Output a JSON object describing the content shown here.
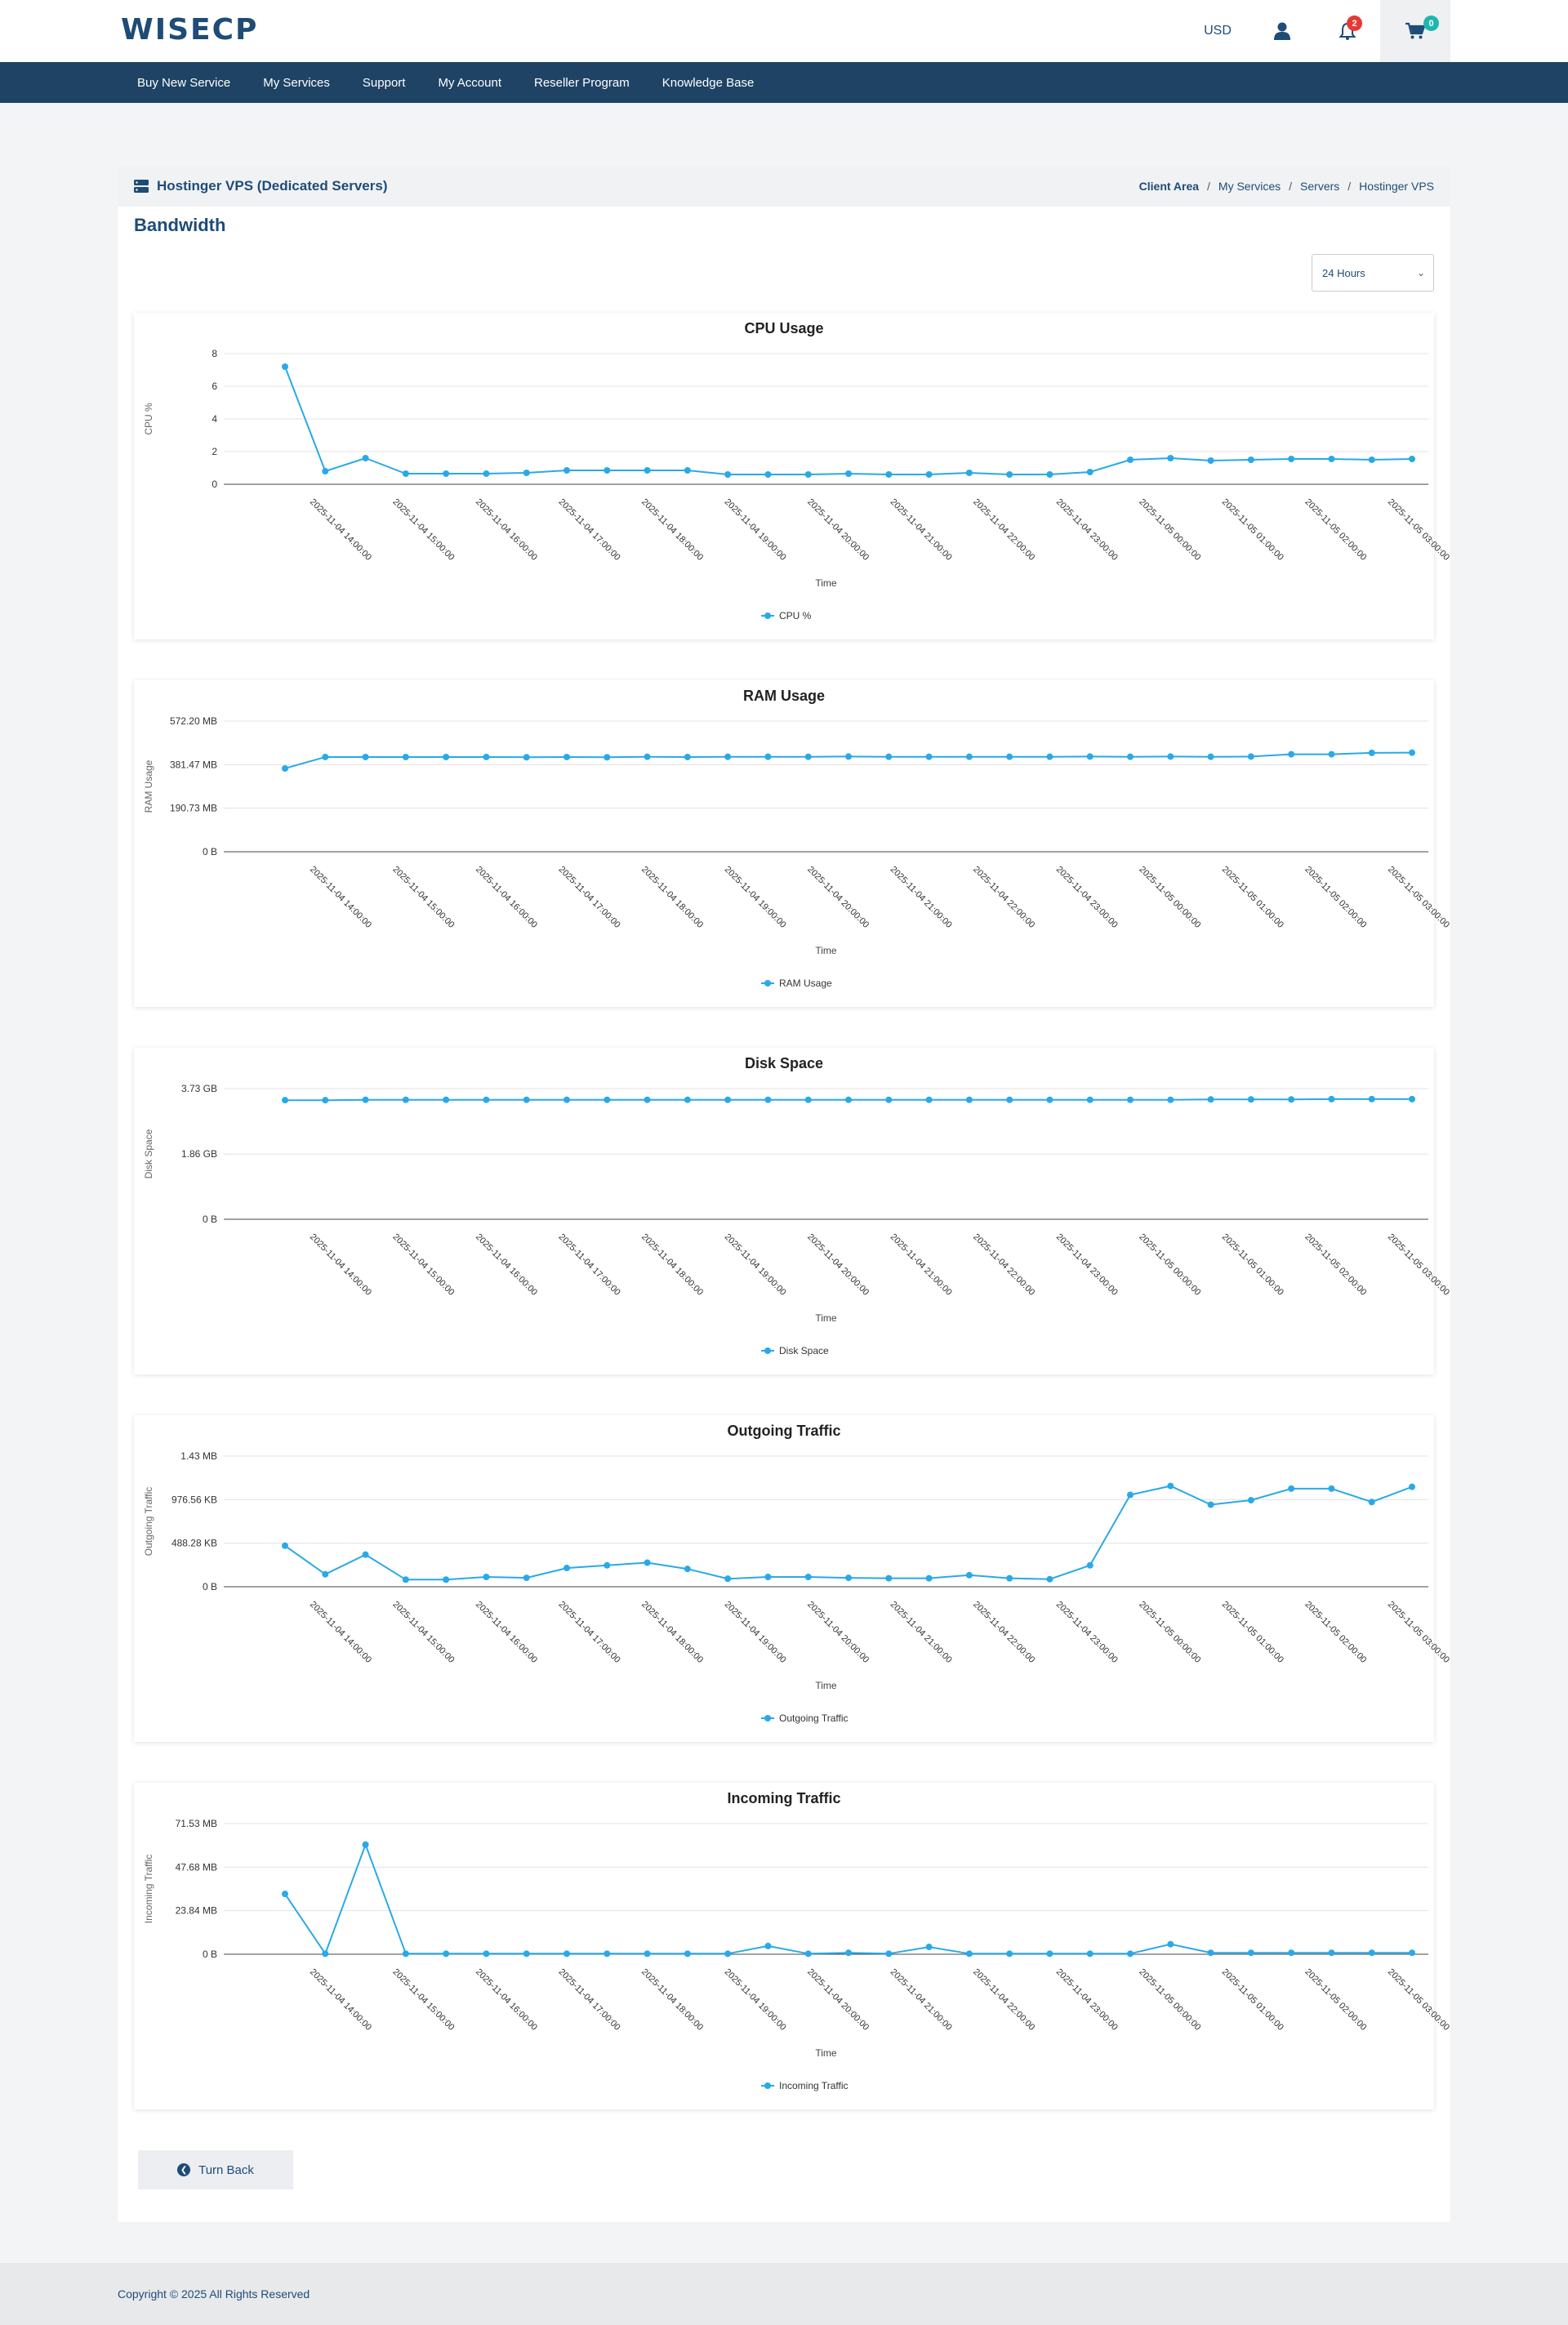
{
  "brand": {
    "name": "WISECP"
  },
  "header": {
    "currency": "USD",
    "notif_count": "2",
    "cart_count": "0"
  },
  "nav": [
    "Buy New Service",
    "My Services",
    "Support",
    "My Account",
    "Reseller Program",
    "Knowledge Base"
  ],
  "page": {
    "title": "Hostinger VPS (Dedicated Servers)",
    "breadcrumb": [
      "Client Area",
      "My Services",
      "Servers",
      "Hostinger VPS"
    ],
    "section": "Bandwidth",
    "range": "24 Hours",
    "back_label": "Turn Back"
  },
  "footer": {
    "copyright": "Copyright © 2025 All Rights Reserved"
  },
  "colors": {
    "accent": "#1e4c77",
    "nav": "#1e4364",
    "series": "#29a9e8"
  },
  "chart_data": [
    {
      "type": "line",
      "title": "CPU Usage",
      "ylabel": "CPU %",
      "xlabel": "Time",
      "legend": "CPU %",
      "ylim": [
        0,
        8
      ],
      "yticks": [
        0,
        2,
        4,
        6,
        8
      ],
      "ytick_labels": [
        "0",
        "2",
        "4",
        "6",
        "8"
      ],
      "xticks": [
        "2025-11-04 14:00:00",
        "2025-11-04 15:00:00",
        "2025-11-04 16:00:00",
        "2025-11-04 17:00:00",
        "2025-11-04 18:00:00",
        "2025-11-04 19:00:00",
        "2025-11-04 20:00:00",
        "2025-11-04 21:00:00",
        "2025-11-04 22:00:00",
        "2025-11-04 23:00:00",
        "2025-11-05 00:00:00",
        "2025-11-05 01:00:00",
        "2025-11-05 02:00:00",
        "2025-11-05 03:00:00"
      ],
      "values": [
        7.2,
        0.8,
        1.6,
        0.65,
        0.65,
        0.65,
        0.7,
        0.85,
        0.85,
        0.85,
        0.85,
        0.6,
        0.6,
        0.6,
        0.65,
        0.6,
        0.6,
        0.7,
        0.6,
        0.6,
        0.75,
        1.5,
        1.6,
        1.45,
        1.5,
        1.55,
        1.55,
        1.5,
        1.55
      ]
    },
    {
      "type": "line",
      "title": "RAM Usage",
      "ylabel": "RAM Usage",
      "xlabel": "Time",
      "legend": "RAM Usage",
      "ylim": [
        0,
        572.2
      ],
      "yticks": [
        0,
        190.73,
        381.47,
        572.2
      ],
      "ytick_labels": [
        "0 B",
        "190.73 MB",
        "381.47 MB",
        "572.20 MB"
      ],
      "xticks": [
        "2025-11-04 14:00:00",
        "2025-11-04 15:00:00",
        "2025-11-04 16:00:00",
        "2025-11-04 17:00:00",
        "2025-11-04 18:00:00",
        "2025-11-04 19:00:00",
        "2025-11-04 20:00:00",
        "2025-11-04 21:00:00",
        "2025-11-04 22:00:00",
        "2025-11-04 23:00:00",
        "2025-11-05 00:00:00",
        "2025-11-05 01:00:00",
        "2025-11-05 02:00:00",
        "2025-11-05 03:00:00"
      ],
      "values": [
        365,
        415,
        415,
        415,
        415,
        415,
        414,
        415,
        414,
        416,
        415,
        416,
        416,
        416,
        417,
        416,
        416,
        416,
        416,
        416,
        417,
        416,
        417,
        416,
        417,
        427,
        427,
        433,
        434
      ]
    },
    {
      "type": "line",
      "title": "Disk Space",
      "ylabel": "Disk Space",
      "xlabel": "Time",
      "legend": "Disk Space",
      "ylim": [
        0,
        3.73
      ],
      "yticks": [
        0,
        1.86,
        3.73
      ],
      "ytick_labels": [
        "0 B",
        "1.86 GB",
        "3.73 GB"
      ],
      "xticks": [
        "2025-11-04 14:00:00",
        "2025-11-04 15:00:00",
        "2025-11-04 16:00:00",
        "2025-11-04 17:00:00",
        "2025-11-04 18:00:00",
        "2025-11-04 19:00:00",
        "2025-11-04 20:00:00",
        "2025-11-04 21:00:00",
        "2025-11-04 22:00:00",
        "2025-11-04 23:00:00",
        "2025-11-05 00:00:00",
        "2025-11-05 01:00:00",
        "2025-11-05 02:00:00",
        "2025-11-05 03:00:00"
      ],
      "values": [
        3.4,
        3.4,
        3.41,
        3.41,
        3.41,
        3.41,
        3.41,
        3.41,
        3.41,
        3.41,
        3.41,
        3.41,
        3.41,
        3.41,
        3.41,
        3.41,
        3.41,
        3.41,
        3.41,
        3.41,
        3.41,
        3.41,
        3.41,
        3.42,
        3.42,
        3.42,
        3.43,
        3.43,
        3.43
      ]
    },
    {
      "type": "line",
      "title": "Outgoing Traffic",
      "ylabel": "Outgoing Traffic",
      "xlabel": "Time",
      "legend": "Outgoing Traffic",
      "ylim": [
        0,
        1464.84
      ],
      "yticks": [
        0,
        488.28,
        976.56,
        1464.84
      ],
      "ytick_labels": [
        "0 B",
        "488.28 KB",
        "976.56 KB",
        "1.43 MB"
      ],
      "xticks": [
        "2025-11-04 14:00:00",
        "2025-11-04 15:00:00",
        "2025-11-04 16:00:00",
        "2025-11-04 17:00:00",
        "2025-11-04 18:00:00",
        "2025-11-04 19:00:00",
        "2025-11-04 20:00:00",
        "2025-11-04 21:00:00",
        "2025-11-04 22:00:00",
        "2025-11-04 23:00:00",
        "2025-11-05 00:00:00",
        "2025-11-05 01:00:00",
        "2025-11-05 02:00:00",
        "2025-11-05 03:00:00"
      ],
      "values": [
        460,
        140,
        360,
        80,
        80,
        110,
        100,
        210,
        240,
        270,
        200,
        90,
        110,
        110,
        100,
        95,
        95,
        130,
        95,
        85,
        240,
        1030,
        1130,
        920,
        970,
        1100,
        1100,
        950,
        1120
      ]
    },
    {
      "type": "line",
      "title": "Incoming Traffic",
      "ylabel": "Incoming Traffic",
      "xlabel": "Time",
      "legend": "Incoming Traffic",
      "ylim": [
        0,
        71.53
      ],
      "yticks": [
        0,
        23.84,
        47.68,
        71.53
      ],
      "ytick_labels": [
        "0 B",
        "23.84 MB",
        "47.68 MB",
        "71.53 MB"
      ],
      "xticks": [
        "2025-11-04 14:00:00",
        "2025-11-04 15:00:00",
        "2025-11-04 16:00:00",
        "2025-11-04 17:00:00",
        "2025-11-04 18:00:00",
        "2025-11-04 19:00:00",
        "2025-11-04 20:00:00",
        "2025-11-04 21:00:00",
        "2025-11-04 22:00:00",
        "2025-11-04 23:00:00",
        "2025-11-05 00:00:00",
        "2025-11-05 01:00:00",
        "2025-11-05 02:00:00",
        "2025-11-05 03:00:00"
      ],
      "values": [
        33,
        0.3,
        60,
        0.3,
        0.3,
        0.3,
        0.3,
        0.3,
        0.3,
        0.3,
        0.3,
        0.3,
        4.5,
        0.3,
        0.8,
        0.3,
        4,
        0.3,
        0.3,
        0.3,
        0.3,
        0.3,
        5.5,
        0.8,
        0.8,
        0.8,
        0.8,
        0.8,
        0.8
      ]
    }
  ]
}
